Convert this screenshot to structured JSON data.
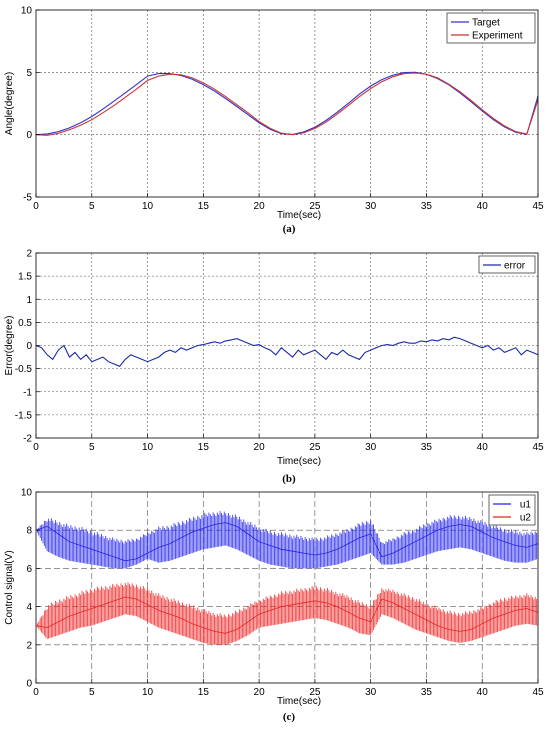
{
  "chart_data": [
    {
      "type": "line",
      "caption": "(a)",
      "xlabel": "Time(sec)",
      "ylabel": "Angle(degree)",
      "xlim": [
        0,
        45
      ],
      "ylim": [
        -5,
        10
      ],
      "xticks": [
        0,
        5,
        10,
        15,
        20,
        25,
        30,
        35,
        40,
        45
      ],
      "yticks": [
        -5,
        0,
        5,
        10
      ],
      "grid": true,
      "legend_position": "top-right",
      "series": [
        {
          "name": "Target",
          "color": "#3333cc",
          "x": [
            0,
            1,
            2,
            3,
            4,
            5,
            6,
            7,
            8,
            9,
            10,
            11,
            12,
            13,
            14,
            15,
            16,
            17,
            18,
            19,
            20,
            21,
            22,
            23,
            24,
            25,
            26,
            27,
            28,
            29,
            30,
            31,
            32,
            33,
            34,
            35,
            36,
            37,
            38,
            39,
            40,
            41,
            42,
            43,
            44,
            45
          ],
          "y": [
            0,
            0.06,
            0.24,
            0.54,
            0.95,
            1.46,
            2.05,
            2.69,
            3.35,
            4.02,
            4.7,
            4.9,
            4.9,
            4.75,
            4.45,
            4.02,
            3.5,
            2.9,
            2.26,
            1.6,
            0.95,
            0.42,
            0.08,
            0.02,
            0.22,
            0.6,
            1.14,
            1.8,
            2.52,
            3.25,
            3.9,
            4.42,
            4.78,
            4.98,
            5.0,
            4.84,
            4.5,
            4.0,
            3.36,
            2.64,
            1.9,
            1.2,
            0.62,
            0.2,
            0.02,
            3.1
          ]
        },
        {
          "name": "Experiment",
          "color": "#cc3333",
          "x": [
            0,
            1,
            2,
            3,
            4,
            5,
            6,
            7,
            8,
            9,
            10,
            11,
            12,
            13,
            14,
            15,
            16,
            17,
            18,
            19,
            20,
            21,
            22,
            23,
            24,
            25,
            26,
            27,
            28,
            29,
            30,
            31,
            32,
            33,
            34,
            35,
            36,
            37,
            38,
            39,
            40,
            41,
            42,
            43,
            44,
            45
          ],
          "y": [
            0,
            -0.05,
            0.1,
            0.4,
            0.75,
            1.2,
            1.75,
            2.35,
            3.0,
            3.65,
            4.35,
            4.7,
            4.85,
            4.8,
            4.55,
            4.15,
            3.65,
            3.05,
            2.4,
            1.75,
            1.05,
            0.5,
            0.12,
            0.0,
            0.15,
            0.5,
            1.0,
            1.65,
            2.35,
            3.05,
            3.7,
            4.25,
            4.65,
            4.9,
            4.95,
            4.85,
            4.55,
            4.05,
            3.45,
            2.75,
            2.0,
            1.3,
            0.7,
            0.25,
            0.05,
            2.8
          ]
        }
      ]
    },
    {
      "type": "line",
      "caption": "(b)",
      "xlabel": "Time(sec)",
      "ylabel": "Error(degree)",
      "xlim": [
        0,
        45
      ],
      "ylim": [
        -2,
        2
      ],
      "xticks": [
        0,
        5,
        10,
        15,
        20,
        25,
        30,
        35,
        40,
        45
      ],
      "yticks": [
        -2,
        -1.5,
        -1,
        -0.5,
        0,
        0.5,
        1,
        1.5,
        2
      ],
      "grid": true,
      "legend_position": "top-right",
      "series": [
        {
          "name": "error",
          "color": "#1a2aa8",
          "x": [
            0,
            0.5,
            1,
            1.5,
            2,
            2.5,
            3,
            3.5,
            4,
            4.5,
            5,
            5.5,
            6,
            6.5,
            7,
            7.5,
            8,
            8.5,
            9,
            9.5,
            10,
            10.5,
            11,
            11.5,
            12,
            12.5,
            13,
            13.5,
            14,
            14.5,
            15,
            15.5,
            16,
            16.5,
            17,
            17.5,
            18,
            18.5,
            19,
            19.5,
            20,
            20.5,
            21,
            21.5,
            22,
            22.5,
            23,
            23.5,
            24,
            24.5,
            25,
            25.5,
            26,
            26.5,
            27,
            27.5,
            28,
            28.5,
            29,
            29.5,
            30,
            30.5,
            31,
            31.5,
            32,
            32.5,
            33,
            33.5,
            34,
            34.5,
            35,
            35.5,
            36,
            36.5,
            37,
            37.5,
            38,
            38.5,
            39,
            39.5,
            40,
            40.5,
            41,
            41.5,
            42,
            42.5,
            43,
            43.5,
            44,
            44.5,
            45
          ],
          "y": [
            0,
            -0.05,
            -0.2,
            -0.3,
            -0.1,
            0.0,
            -0.25,
            -0.15,
            -0.3,
            -0.2,
            -0.35,
            -0.3,
            -0.25,
            -0.35,
            -0.4,
            -0.45,
            -0.3,
            -0.2,
            -0.25,
            -0.3,
            -0.35,
            -0.3,
            -0.25,
            -0.15,
            -0.1,
            -0.15,
            -0.05,
            -0.1,
            -0.05,
            0.0,
            0.02,
            0.05,
            0.08,
            0.05,
            0.1,
            0.12,
            0.15,
            0.1,
            0.05,
            0.0,
            0.02,
            -0.05,
            -0.1,
            -0.2,
            -0.05,
            -0.15,
            -0.25,
            -0.1,
            -0.2,
            -0.15,
            -0.1,
            -0.2,
            -0.3,
            -0.15,
            -0.2,
            -0.1,
            -0.2,
            -0.25,
            -0.3,
            -0.15,
            -0.1,
            -0.05,
            0.0,
            0.02,
            0.0,
            0.05,
            0.08,
            0.05,
            0.05,
            0.1,
            0.08,
            0.12,
            0.1,
            0.15,
            0.12,
            0.18,
            0.15,
            0.1,
            0.05,
            0.0,
            -0.05,
            0.0,
            -0.1,
            -0.05,
            -0.15,
            -0.1,
            -0.05,
            -0.2,
            -0.1,
            -0.15,
            -0.2
          ]
        }
      ]
    },
    {
      "type": "line",
      "caption": "(c)",
      "xlabel": "Time(sec)",
      "ylabel": "Control signal(V)",
      "xlim": [
        0,
        45
      ],
      "ylim": [
        0,
        10
      ],
      "xticks": [
        0,
        5,
        10,
        15,
        20,
        25,
        30,
        35,
        40,
        45
      ],
      "yticks": [
        0,
        2,
        4,
        6,
        8,
        10
      ],
      "grid": true,
      "legend_position": "top-right",
      "series": [
        {
          "name": "u1",
          "color": "#2222ee",
          "x": [
            0,
            1,
            2,
            3,
            4,
            5,
            6,
            7,
            8,
            9,
            10,
            11,
            12,
            13,
            14,
            15,
            16,
            17,
            18,
            19,
            20,
            21,
            22,
            23,
            24,
            25,
            26,
            27,
            28,
            29,
            30,
            31,
            32,
            33,
            34,
            35,
            36,
            37,
            38,
            39,
            40,
            41,
            42,
            43,
            44,
            45
          ],
          "y": [
            8.0,
            8.2,
            7.8,
            7.4,
            7.2,
            7.0,
            6.8,
            6.6,
            6.4,
            6.5,
            6.8,
            7.1,
            7.3,
            7.6,
            7.9,
            8.1,
            8.3,
            8.4,
            8.2,
            7.8,
            7.4,
            7.2,
            7.0,
            6.9,
            6.8,
            6.7,
            6.8,
            7.0,
            7.3,
            7.6,
            7.8,
            6.6,
            6.8,
            7.1,
            7.4,
            7.7,
            8.0,
            8.2,
            8.3,
            8.2,
            7.9,
            7.6,
            7.4,
            7.2,
            7.1,
            7.3
          ],
          "lo": [
            8.0,
            6.9,
            6.6,
            6.4,
            6.3,
            6.2,
            6.1,
            6.0,
            6.0,
            6.2,
            6.5,
            6.3,
            6.4,
            6.6,
            6.8,
            7.0,
            7.1,
            7.2,
            7.0,
            6.7,
            6.4,
            6.2,
            6.1,
            6.0,
            6.0,
            6.0,
            6.1,
            6.2,
            6.4,
            6.6,
            6.8,
            6.2,
            6.2,
            6.3,
            6.5,
            6.7,
            6.9,
            7.0,
            7.1,
            7.0,
            6.8,
            6.6,
            6.4,
            6.3,
            6.3,
            6.5
          ],
          "hi": [
            8.0,
            8.7,
            8.5,
            8.3,
            8.2,
            8.0,
            7.8,
            7.6,
            7.5,
            7.6,
            7.9,
            8.2,
            8.3,
            8.5,
            8.7,
            8.9,
            9.0,
            9.0,
            8.8,
            8.5,
            8.2,
            8.0,
            7.9,
            7.8,
            7.7,
            7.6,
            7.7,
            7.9,
            8.1,
            8.4,
            8.6,
            7.4,
            7.6,
            7.9,
            8.1,
            8.4,
            8.6,
            8.8,
            8.8,
            8.7,
            8.5,
            8.3,
            8.1,
            8.0,
            7.9,
            8.0
          ]
        },
        {
          "name": "u2",
          "color": "#ee2222",
          "x": [
            0,
            1,
            2,
            3,
            4,
            5,
            6,
            7,
            8,
            9,
            10,
            11,
            12,
            13,
            14,
            15,
            16,
            17,
            18,
            19,
            20,
            21,
            22,
            23,
            24,
            25,
            26,
            27,
            28,
            29,
            30,
            31,
            32,
            33,
            34,
            35,
            36,
            37,
            38,
            39,
            40,
            41,
            42,
            43,
            44,
            45
          ],
          "y": [
            3.0,
            2.9,
            3.2,
            3.5,
            3.7,
            3.9,
            4.1,
            4.3,
            4.5,
            4.4,
            4.1,
            3.8,
            3.6,
            3.4,
            3.1,
            2.9,
            2.7,
            2.6,
            2.8,
            3.2,
            3.6,
            3.8,
            4.0,
            4.1,
            4.2,
            4.3,
            4.2,
            4.0,
            3.7,
            3.4,
            3.2,
            4.4,
            4.2,
            3.9,
            3.6,
            3.3,
            3.0,
            2.8,
            2.7,
            2.8,
            3.1,
            3.4,
            3.6,
            3.8,
            3.9,
            3.7
          ],
          "lo": [
            3.0,
            2.3,
            2.5,
            2.7,
            2.9,
            3.0,
            3.2,
            3.4,
            3.6,
            3.5,
            3.2,
            2.9,
            2.7,
            2.5,
            2.3,
            2.1,
            2.0,
            2.0,
            2.2,
            2.5,
            2.9,
            3.0,
            3.1,
            3.2,
            3.3,
            3.4,
            3.3,
            3.1,
            2.9,
            2.6,
            2.5,
            3.6,
            3.4,
            3.1,
            2.8,
            2.6,
            2.4,
            2.2,
            2.1,
            2.2,
            2.4,
            2.6,
            2.8,
            3.0,
            3.1,
            3.0
          ],
          "hi": [
            3.0,
            4.1,
            4.4,
            4.6,
            4.8,
            5.0,
            5.1,
            5.2,
            5.3,
            5.2,
            5.0,
            4.7,
            4.5,
            4.3,
            4.1,
            3.9,
            3.7,
            3.6,
            3.8,
            4.1,
            4.4,
            4.6,
            4.8,
            4.9,
            5.0,
            5.1,
            5.0,
            4.8,
            4.6,
            4.3,
            4.1,
            5.0,
            4.9,
            4.7,
            4.5,
            4.2,
            4.0,
            3.8,
            3.7,
            3.8,
            4.0,
            4.3,
            4.5,
            4.6,
            4.7,
            4.5
          ]
        }
      ]
    }
  ]
}
